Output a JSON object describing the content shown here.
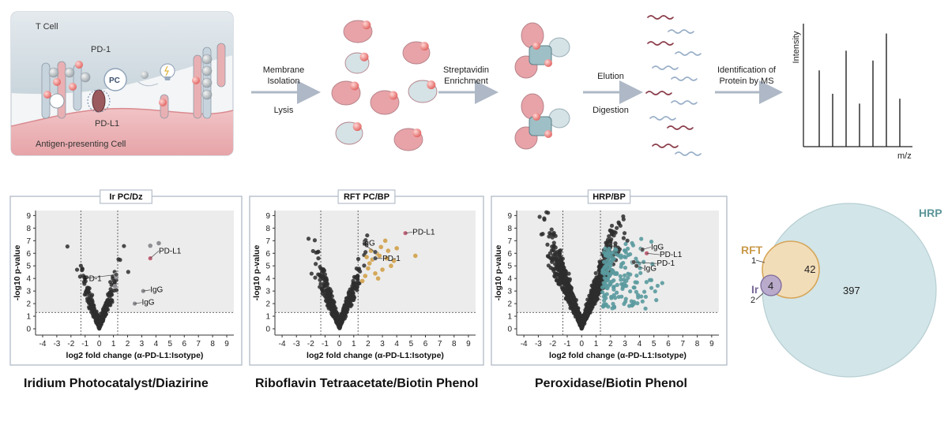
{
  "schematic": {
    "cell_top_label": "T Cell",
    "cell_bottom_label": "Antigen-presenting Cell",
    "pd1_label": "PD-1",
    "pdl1_label": "PD-L1",
    "pc_label": "PC"
  },
  "steps": {
    "step1_top": "Membrane",
    "step1_top2": "Isolation",
    "step1_bottom": "Lysis",
    "step2_top": "Streptavidin",
    "step2_top2": "Enrichment",
    "step3_top": "Elution",
    "step3_bottom": "Digestion",
    "step4_top": "Identification of",
    "step4_top2": "Protein by MS"
  },
  "ms_spectrum": {
    "ylabel": "Intensity",
    "xlabel": "m/z",
    "peaks": [
      0.62,
      0.43,
      0.78,
      0.35,
      0.7,
      0.92,
      0.39
    ]
  },
  "panels": [
    {
      "title": "Ir PC/Dz",
      "caption": "Iridium Photocatalyst/Diazirine",
      "highlight_color": "#8e8e93",
      "n_points": 320,
      "spread": 0.55,
      "hits": [
        {
          "x": 3.6,
          "y": 6.6
        },
        {
          "x": 4.2,
          "y": 6.8
        },
        {
          "x": 3.1,
          "y": 3.0
        },
        {
          "x": 2.5,
          "y": 2.0
        },
        {
          "x": 1.2,
          "y": 4.1
        },
        {
          "x": 1.1,
          "y": 3.4
        }
      ],
      "labels": [
        {
          "text": "PD-L1",
          "x": 3.6,
          "y": 5.6,
          "color": "#c0667a",
          "tx": 4.2,
          "ty": 6.0
        },
        {
          "text": "PD-1",
          "x": 1.2,
          "y": 4.3,
          "color": "#555555",
          "tx": -1.1,
          "ty": 3.8
        },
        {
          "text": "IgG",
          "x": 3.1,
          "y": 3.0,
          "color": "#8e8e93",
          "tx": 3.6,
          "ty": 2.9
        },
        {
          "text": "IgG",
          "x": 2.5,
          "y": 2.0,
          "color": "#8e8e93",
          "tx": 3.0,
          "ty": 1.9
        }
      ]
    },
    {
      "title": "RFT PC/BP",
      "caption": "Riboflavin Tetraacetate/Biotin Phenol",
      "highlight_color": "#d4a85a",
      "n_points": 520,
      "spread": 0.65,
      "hits": [
        {
          "x": 2.0,
          "y": 4.8
        },
        {
          "x": 2.3,
          "y": 5.5
        },
        {
          "x": 2.6,
          "y": 6.0
        },
        {
          "x": 2.9,
          "y": 6.5
        },
        {
          "x": 3.2,
          "y": 7.0
        },
        {
          "x": 3.4,
          "y": 6.2
        },
        {
          "x": 2.1,
          "y": 5.2
        },
        {
          "x": 2.8,
          "y": 5.8
        },
        {
          "x": 1.8,
          "y": 4.2
        },
        {
          "x": 3.6,
          "y": 5.0
        },
        {
          "x": 5.3,
          "y": 5.8
        },
        {
          "x": 4.0,
          "y": 6.4
        },
        {
          "x": 2.5,
          "y": 4.4
        },
        {
          "x": 1.6,
          "y": 3.8
        },
        {
          "x": 3.0,
          "y": 4.7
        },
        {
          "x": 2.2,
          "y": 6.2
        },
        {
          "x": 3.8,
          "y": 5.4
        },
        {
          "x": 2.7,
          "y": 4.0
        },
        {
          "x": 1.9,
          "y": 5.7
        },
        {
          "x": 3.3,
          "y": 5.6
        }
      ],
      "labels": [
        {
          "text": "PD-L1",
          "x": 4.6,
          "y": 7.6,
          "color": "#c0667a",
          "tx": 5.1,
          "ty": 7.5
        },
        {
          "text": "PD-1",
          "x": 2.5,
          "y": 5.6,
          "color": "#555555",
          "tx": 3.0,
          "ty": 5.4
        },
        {
          "text": "IgG",
          "x": 2.5,
          "y": 6.1,
          "color": "#555555",
          "tx": 1.6,
          "ty": 6.6
        }
      ]
    },
    {
      "title": "HRP/BP",
      "caption": "Peroxidase/Biotin Phenol",
      "highlight_color": "#5a9a9e",
      "n_points": 1300,
      "spread": 1.05,
      "hits": [],
      "n_teal": 180,
      "labels": [
        {
          "text": "IgG",
          "x": 4.2,
          "y": 6.3,
          "color": "#555555",
          "tx": 4.8,
          "ty": 6.3
        },
        {
          "text": "PD-L1",
          "x": 4.5,
          "y": 6.0,
          "color": "#c0667a",
          "tx": 5.4,
          "ty": 5.7
        },
        {
          "text": "IgG",
          "x": 3.8,
          "y": 5.0,
          "color": "#555555",
          "tx": 4.3,
          "ty": 4.6
        },
        {
          "text": "PD-1",
          "x": 3.6,
          "y": 5.3,
          "color": "#555555",
          "tx": 5.2,
          "ty": 5.0
        }
      ]
    }
  ],
  "axes": {
    "xlabel": "log2 fold change (α-PD-L1:Isotype)",
    "ylabel": "-log10 p-value",
    "xticks": [
      -4,
      -3,
      -2,
      -1,
      0,
      1,
      2,
      3,
      4,
      5,
      6,
      7,
      8,
      9
    ],
    "yticks": [
      0,
      1,
      2,
      3,
      4,
      5,
      6,
      7,
      8,
      9
    ]
  },
  "venn": {
    "hrp_label": "HRP",
    "rft_label": "RFT",
    "ir_label": "Ir",
    "hrp_only": "397",
    "rft_hrp": "42",
    "all_three": "4",
    "rft_only": "1",
    "ir_only": "2"
  },
  "colors": {
    "protein_red": "#e8a3a8",
    "protein_blue": "#d5e2e6",
    "hrp_fill": "#cfe3e6",
    "rft_fill": "#f3dcb7",
    "ir_fill": "#b8a9c9"
  }
}
